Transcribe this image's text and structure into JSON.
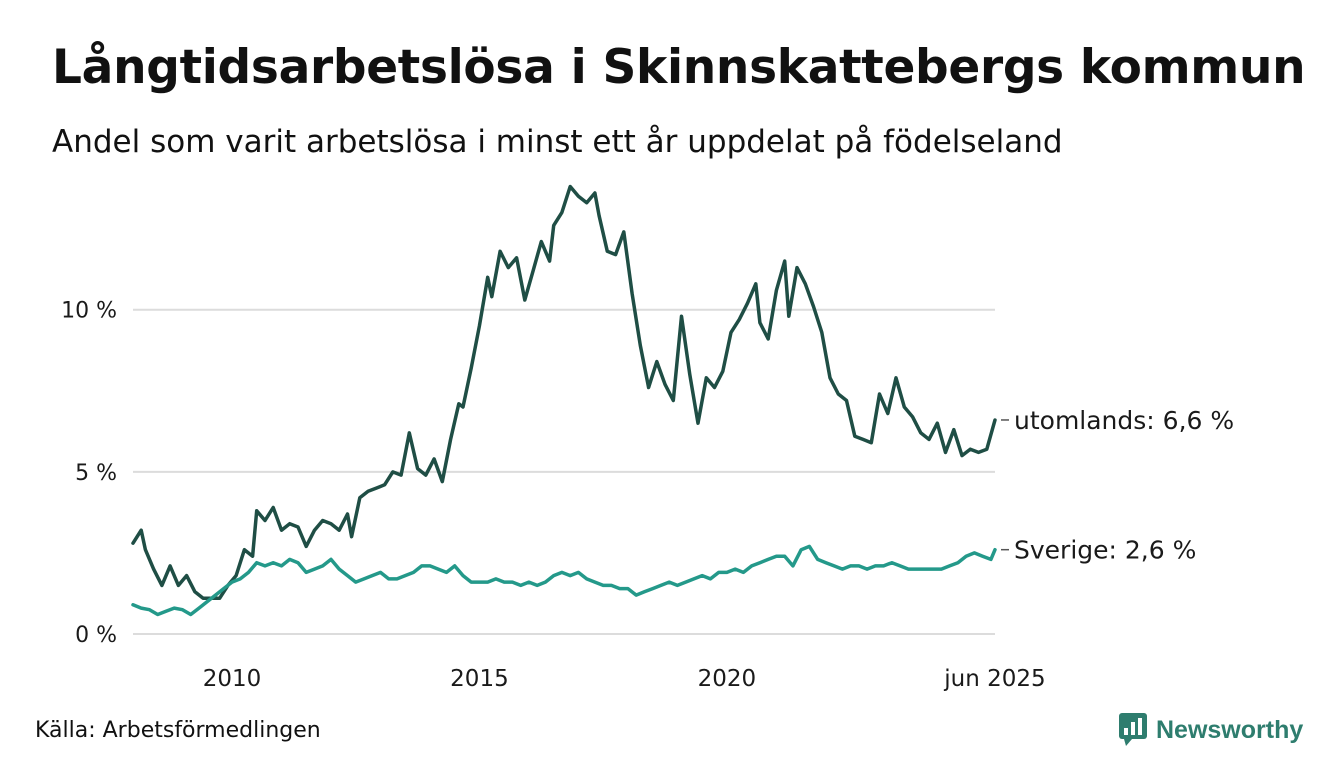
{
  "title": "Långtidsarbetslösa i Skinnskattebergs kommun",
  "subtitle": "Andel som varit arbetslösa i minst ett år uppdelat på födelseland",
  "source": "Källa: Arbetsförmedlingen",
  "brand": {
    "name": "Newsworthy",
    "icon": "newsworthy-logo-icon",
    "color": "#2e7d6e"
  },
  "chart_data": {
    "type": "line",
    "title": "Långtidsarbetslösa i Skinnskattebergs kommun",
    "subtitle": "Andel som varit arbetslösa i minst ett år uppdelat på födelseland",
    "xlabel": "",
    "ylabel": "",
    "x_range": [
      "2008-01",
      "2025-06"
    ],
    "ylim": [
      0,
      14
    ],
    "y_ticks": [
      {
        "value": 0,
        "label": "0 %"
      },
      {
        "value": 5,
        "label": "5 %"
      },
      {
        "value": 10,
        "label": "10 %"
      }
    ],
    "x_ticks": [
      {
        "value": "2010-01",
        "label": "2010"
      },
      {
        "value": "2015-01",
        "label": "2015"
      },
      {
        "value": "2020-01",
        "label": "2020"
      },
      {
        "value": "2025-06",
        "label": "jun 2025"
      }
    ],
    "grid": "horizontal",
    "legend": "end-labels",
    "series": [
      {
        "name": "utomlands",
        "end_label": "utomlands: 6,6 %",
        "color": "#1f4e45",
        "points": [
          [
            "2008-01",
            2.8
          ],
          [
            "2008-03",
            3.2
          ],
          [
            "2008-04",
            2.6
          ],
          [
            "2008-06",
            2.0
          ],
          [
            "2008-08",
            1.5
          ],
          [
            "2008-10",
            2.1
          ],
          [
            "2008-12",
            1.5
          ],
          [
            "2009-02",
            1.8
          ],
          [
            "2009-04",
            1.3
          ],
          [
            "2009-06",
            1.1
          ],
          [
            "2009-10",
            1.1
          ],
          [
            "2009-12",
            1.5
          ],
          [
            "2010-02",
            1.8
          ],
          [
            "2010-04",
            2.6
          ],
          [
            "2010-06",
            2.4
          ],
          [
            "2010-07",
            3.8
          ],
          [
            "2010-09",
            3.5
          ],
          [
            "2010-11",
            3.9
          ],
          [
            "2011-01",
            3.2
          ],
          [
            "2011-03",
            3.4
          ],
          [
            "2011-05",
            3.3
          ],
          [
            "2011-07",
            2.7
          ],
          [
            "2011-09",
            3.2
          ],
          [
            "2011-11",
            3.5
          ],
          [
            "2012-01",
            3.4
          ],
          [
            "2012-03",
            3.2
          ],
          [
            "2012-05",
            3.7
          ],
          [
            "2012-06",
            3.0
          ],
          [
            "2012-08",
            4.2
          ],
          [
            "2012-10",
            4.4
          ],
          [
            "2012-12",
            4.5
          ],
          [
            "2013-02",
            4.6
          ],
          [
            "2013-04",
            5.0
          ],
          [
            "2013-06",
            4.9
          ],
          [
            "2013-08",
            6.2
          ],
          [
            "2013-10",
            5.1
          ],
          [
            "2013-12",
            4.9
          ],
          [
            "2014-02",
            5.4
          ],
          [
            "2014-04",
            4.7
          ],
          [
            "2014-06",
            6.0
          ],
          [
            "2014-08",
            7.1
          ],
          [
            "2014-09",
            7.0
          ],
          [
            "2014-11",
            8.2
          ],
          [
            "2015-01",
            9.5
          ],
          [
            "2015-03",
            11.0
          ],
          [
            "2015-04",
            10.4
          ],
          [
            "2015-06",
            11.8
          ],
          [
            "2015-08",
            11.3
          ],
          [
            "2015-10",
            11.6
          ],
          [
            "2015-12",
            10.3
          ],
          [
            "2016-02",
            11.2
          ],
          [
            "2016-04",
            12.1
          ],
          [
            "2016-06",
            11.5
          ],
          [
            "2016-07",
            12.6
          ],
          [
            "2016-09",
            13.0
          ],
          [
            "2016-11",
            13.8
          ],
          [
            "2017-01",
            13.5
          ],
          [
            "2017-03",
            13.3
          ],
          [
            "2017-05",
            13.6
          ],
          [
            "2017-06",
            12.9
          ],
          [
            "2017-08",
            11.8
          ],
          [
            "2017-10",
            11.7
          ],
          [
            "2017-12",
            12.4
          ],
          [
            "2018-02",
            10.5
          ],
          [
            "2018-04",
            8.9
          ],
          [
            "2018-06",
            7.6
          ],
          [
            "2018-08",
            8.4
          ],
          [
            "2018-10",
            7.7
          ],
          [
            "2018-12",
            7.2
          ],
          [
            "2019-02",
            9.8
          ],
          [
            "2019-04",
            8.0
          ],
          [
            "2019-06",
            6.5
          ],
          [
            "2019-08",
            7.9
          ],
          [
            "2019-10",
            7.6
          ],
          [
            "2019-12",
            8.1
          ],
          [
            "2020-02",
            9.3
          ],
          [
            "2020-04",
            9.7
          ],
          [
            "2020-06",
            10.2
          ],
          [
            "2020-08",
            10.8
          ],
          [
            "2020-09",
            9.6
          ],
          [
            "2020-11",
            9.1
          ],
          [
            "2021-01",
            10.6
          ],
          [
            "2021-03",
            11.5
          ],
          [
            "2021-04",
            9.8
          ],
          [
            "2021-06",
            11.3
          ],
          [
            "2021-08",
            10.8
          ],
          [
            "2021-10",
            10.1
          ],
          [
            "2021-12",
            9.3
          ],
          [
            "2022-02",
            7.9
          ],
          [
            "2022-04",
            7.4
          ],
          [
            "2022-06",
            7.2
          ],
          [
            "2022-08",
            6.1
          ],
          [
            "2022-10",
            6.0
          ],
          [
            "2022-12",
            5.9
          ],
          [
            "2023-02",
            7.4
          ],
          [
            "2023-04",
            6.8
          ],
          [
            "2023-06",
            7.9
          ],
          [
            "2023-08",
            7.0
          ],
          [
            "2023-10",
            6.7
          ],
          [
            "2023-12",
            6.2
          ],
          [
            "2024-02",
            6.0
          ],
          [
            "2024-04",
            6.5
          ],
          [
            "2024-06",
            5.6
          ],
          [
            "2024-08",
            6.3
          ],
          [
            "2024-10",
            5.5
          ],
          [
            "2024-12",
            5.7
          ],
          [
            "2025-02",
            5.6
          ],
          [
            "2025-04",
            5.7
          ],
          [
            "2025-06",
            6.6
          ]
        ]
      },
      {
        "name": "Sverige",
        "end_label": "Sverige: 2,6 %",
        "color": "#24998a",
        "points": [
          [
            "2008-01",
            0.9
          ],
          [
            "2008-03",
            0.8
          ],
          [
            "2008-05",
            0.75
          ],
          [
            "2008-07",
            0.6
          ],
          [
            "2008-09",
            0.7
          ],
          [
            "2008-11",
            0.8
          ],
          [
            "2009-01",
            0.75
          ],
          [
            "2009-03",
            0.6
          ],
          [
            "2009-05",
            0.8
          ],
          [
            "2009-07",
            1.0
          ],
          [
            "2009-09",
            1.2
          ],
          [
            "2009-11",
            1.4
          ],
          [
            "2010-01",
            1.6
          ],
          [
            "2010-03",
            1.7
          ],
          [
            "2010-05",
            1.9
          ],
          [
            "2010-07",
            2.2
          ],
          [
            "2010-09",
            2.1
          ],
          [
            "2010-11",
            2.2
          ],
          [
            "2011-01",
            2.1
          ],
          [
            "2011-03",
            2.3
          ],
          [
            "2011-05",
            2.2
          ],
          [
            "2011-07",
            1.9
          ],
          [
            "2011-09",
            2.0
          ],
          [
            "2011-11",
            2.1
          ],
          [
            "2012-01",
            2.3
          ],
          [
            "2012-03",
            2.0
          ],
          [
            "2012-05",
            1.8
          ],
          [
            "2012-07",
            1.6
          ],
          [
            "2012-09",
            1.7
          ],
          [
            "2012-11",
            1.8
          ],
          [
            "2013-01",
            1.9
          ],
          [
            "2013-03",
            1.7
          ],
          [
            "2013-05",
            1.7
          ],
          [
            "2013-07",
            1.8
          ],
          [
            "2013-09",
            1.9
          ],
          [
            "2013-11",
            2.1
          ],
          [
            "2014-01",
            2.1
          ],
          [
            "2014-03",
            2.0
          ],
          [
            "2014-05",
            1.9
          ],
          [
            "2014-07",
            2.1
          ],
          [
            "2014-09",
            1.8
          ],
          [
            "2014-11",
            1.6
          ],
          [
            "2015-01",
            1.6
          ],
          [
            "2015-03",
            1.6
          ],
          [
            "2015-05",
            1.7
          ],
          [
            "2015-07",
            1.6
          ],
          [
            "2015-09",
            1.6
          ],
          [
            "2015-11",
            1.5
          ],
          [
            "2016-01",
            1.6
          ],
          [
            "2016-03",
            1.5
          ],
          [
            "2016-05",
            1.6
          ],
          [
            "2016-07",
            1.8
          ],
          [
            "2016-09",
            1.9
          ],
          [
            "2016-11",
            1.8
          ],
          [
            "2017-01",
            1.9
          ],
          [
            "2017-03",
            1.7
          ],
          [
            "2017-05",
            1.6
          ],
          [
            "2017-07",
            1.5
          ],
          [
            "2017-09",
            1.5
          ],
          [
            "2017-11",
            1.4
          ],
          [
            "2018-01",
            1.4
          ],
          [
            "2018-03",
            1.2
          ],
          [
            "2018-05",
            1.3
          ],
          [
            "2018-07",
            1.4
          ],
          [
            "2018-09",
            1.5
          ],
          [
            "2018-11",
            1.6
          ],
          [
            "2019-01",
            1.5
          ],
          [
            "2019-03",
            1.6
          ],
          [
            "2019-05",
            1.7
          ],
          [
            "2019-07",
            1.8
          ],
          [
            "2019-09",
            1.7
          ],
          [
            "2019-11",
            1.9
          ],
          [
            "2020-01",
            1.9
          ],
          [
            "2020-03",
            2.0
          ],
          [
            "2020-05",
            1.9
          ],
          [
            "2020-07",
            2.1
          ],
          [
            "2020-09",
            2.2
          ],
          [
            "2020-11",
            2.3
          ],
          [
            "2021-01",
            2.4
          ],
          [
            "2021-03",
            2.4
          ],
          [
            "2021-05",
            2.1
          ],
          [
            "2021-07",
            2.6
          ],
          [
            "2021-09",
            2.7
          ],
          [
            "2021-11",
            2.3
          ],
          [
            "2022-01",
            2.2
          ],
          [
            "2022-03",
            2.1
          ],
          [
            "2022-05",
            2.0
          ],
          [
            "2022-07",
            2.1
          ],
          [
            "2022-09",
            2.1
          ],
          [
            "2022-11",
            2.0
          ],
          [
            "2023-01",
            2.1
          ],
          [
            "2023-03",
            2.1
          ],
          [
            "2023-05",
            2.2
          ],
          [
            "2023-07",
            2.1
          ],
          [
            "2023-09",
            2.0
          ],
          [
            "2023-11",
            2.0
          ],
          [
            "2024-01",
            2.0
          ],
          [
            "2024-03",
            2.0
          ],
          [
            "2024-05",
            2.0
          ],
          [
            "2024-07",
            2.1
          ],
          [
            "2024-09",
            2.2
          ],
          [
            "2024-11",
            2.4
          ],
          [
            "2025-01",
            2.5
          ],
          [
            "2025-03",
            2.4
          ],
          [
            "2025-05",
            2.3
          ],
          [
            "2025-06",
            2.6
          ]
        ]
      }
    ]
  }
}
